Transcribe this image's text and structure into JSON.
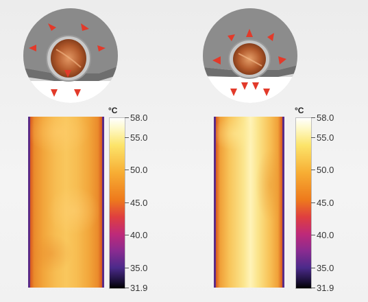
{
  "figures": [
    {
      "id": "left",
      "scale": {
        "unit": "°C",
        "min": 31.9,
        "max": 58.0,
        "ticks": [
          {
            "label": "58.0",
            "value": 58.0
          },
          {
            "label": "55.0",
            "value": 55.0
          },
          {
            "label": "50.0",
            "value": 50.0
          },
          {
            "label": "45.0",
            "value": 45.0
          },
          {
            "label": "40.0",
            "value": 40.0
          },
          {
            "label": "35.0",
            "value": 35.0
          },
          {
            "label": "31.9",
            "value": 31.9
          }
        ]
      }
    },
    {
      "id": "right",
      "scale": {
        "unit": "°C",
        "min": 31.9,
        "max": 58.0,
        "ticks": [
          {
            "label": "58.0",
            "value": 58.0
          },
          {
            "label": "55.0",
            "value": 55.0
          },
          {
            "label": "50.0",
            "value": 50.0
          },
          {
            "label": "45.0",
            "value": 45.0
          },
          {
            "label": "40.0",
            "value": 40.0
          },
          {
            "label": "35.0",
            "value": 35.0
          },
          {
            "label": "31.9",
            "value": 31.9
          }
        ]
      }
    }
  ],
  "colors": {
    "arrow": "#e23a2a",
    "copper": "#c8733f",
    "fin_metal": "#7c7c7c",
    "absorber_white": "#ffffff",
    "circle_background": "#d8d8d8"
  },
  "icons": {
    "left_detail": "tube-in-fin-detail-icon",
    "right_detail": "tube-in-fin-detail-icon",
    "arrow": "heat-flow-arrow-icon"
  }
}
